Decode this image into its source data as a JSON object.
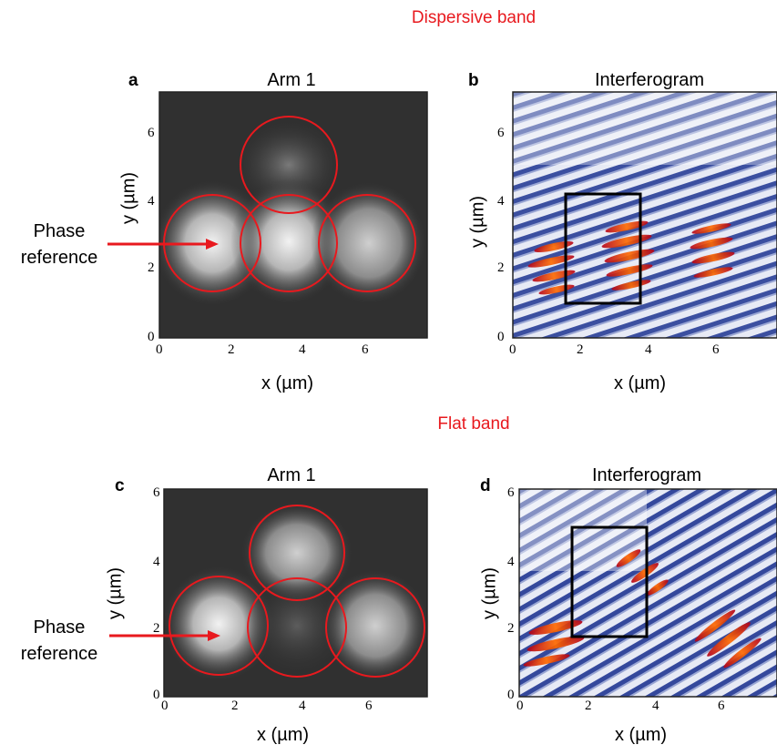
{
  "sections": {
    "top": "Dispersive band",
    "bottom": "Flat band"
  },
  "panels": {
    "a": {
      "letter": "a",
      "title": "Arm 1",
      "xlabel": "x (µm)",
      "ylabel": "y (µm)",
      "xticks": [
        "0",
        "2",
        "4",
        "6"
      ],
      "yticks": [
        "0",
        "2",
        "4",
        "6"
      ]
    },
    "b": {
      "letter": "b",
      "title": "Interferogram",
      "xlabel": "x (µm)",
      "ylabel": "y (µm)",
      "xticks": [
        "0",
        "2",
        "4",
        "6"
      ],
      "yticks": [
        "0",
        "2",
        "4",
        "6"
      ]
    },
    "c": {
      "letter": "c",
      "title": "Arm 1",
      "xlabel": "x (µm)",
      "ylabel": "y (µm)",
      "xticks": [
        "0",
        "2",
        "4",
        "6"
      ],
      "yticks": [
        "0",
        "2",
        "4",
        "6"
      ]
    },
    "d": {
      "letter": "d",
      "title": "Interferogram",
      "xlabel": "x (µm)",
      "ylabel": "y (µm)",
      "xticks": [
        "0",
        "2",
        "4",
        "6"
      ],
      "yticks": [
        "0",
        "2",
        "4",
        "6"
      ]
    }
  },
  "annotations": {
    "phase_reference_top": [
      "Phase",
      "reference"
    ],
    "phase_reference_bottom": [
      "Phase",
      "reference"
    ]
  },
  "colors": {
    "accent": "#e8191e",
    "circle": "#e8191e",
    "box": "#000000"
  }
}
